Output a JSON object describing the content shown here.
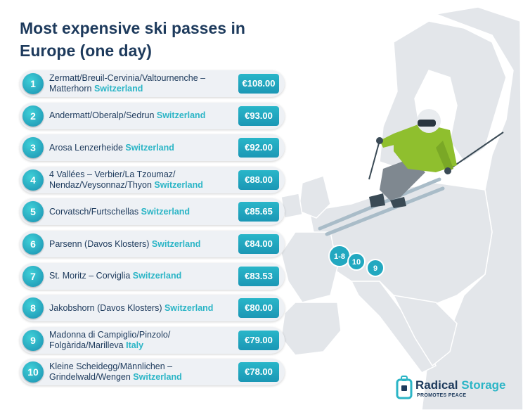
{
  "header": {
    "title": "Most expensive ski passes in Europe (one day)"
  },
  "rows": [
    {
      "rank": 1,
      "name": "Zermatt/Breuil-Cervinia/Valtournenche – Matterhorn",
      "country": "Switzerland",
      "price": "€108.00"
    },
    {
      "rank": 2,
      "name": "Andermatt/Oberalp/Sedrun",
      "country": "Switzerland",
      "price": "€93.00"
    },
    {
      "rank": 3,
      "name": "Arosa Lenzerheide",
      "country": "Switzerland",
      "price": "€92.00"
    },
    {
      "rank": 4,
      "name": "4 Vallées – Verbier/La Tzoumaz/ Nendaz/Veysonnaz/Thyon",
      "country": "Switzerland",
      "price": "€88.00"
    },
    {
      "rank": 5,
      "name": "Corvatsch/Furtschellas",
      "country": "Switzerland",
      "price": "€85.65"
    },
    {
      "rank": 6,
      "name": "Parsenn (Davos Klosters)",
      "country": "Switzerland",
      "price": "€84.00"
    },
    {
      "rank": 7,
      "name": "St. Moritz – Corviglia",
      "country": "Switzerland",
      "price": "€83.53"
    },
    {
      "rank": 8,
      "name": "Jakobshorn (Davos Klosters)",
      "country": "Switzerland",
      "price": "€80.00"
    },
    {
      "rank": 9,
      "name": "Madonna di Campiglio/Pinzolo/ Folgàrida/Marilleva",
      "country": "Italy",
      "price": "€79.00"
    },
    {
      "rank": 10,
      "name": "Kleine Scheidegg/Männlichen – Grindelwald/Wengen",
      "country": "Switzerland",
      "price": "€78.00"
    }
  ],
  "map_pins": [
    "1-8",
    "10",
    "9"
  ],
  "logo": {
    "brand_first": "Radical",
    "brand_second": "Storage",
    "tagline": "PROMOTES PEACE"
  }
}
